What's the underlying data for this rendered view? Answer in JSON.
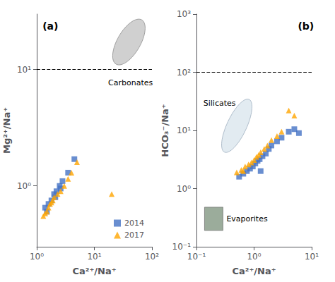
{
  "chart_data": [
    {
      "type": "scatter",
      "title": "(a)",
      "xlabel": "Ca²⁺/Na⁺",
      "ylabel": "Mg²⁺/Na⁺",
      "log": true,
      "grid": false,
      "legend": "lower right",
      "xlim": [
        1,
        100
      ],
      "xticks": [
        {
          "value": 1,
          "label": "10⁰"
        },
        {
          "value": 10,
          "label": "10¹"
        },
        {
          "value": 100,
          "label": "10²"
        }
      ],
      "ylim": [
        0.3,
        30
      ],
      "yticks": [
        {
          "value": 1,
          "label": "10⁰"
        },
        {
          "value": 10,
          "label": "10¹"
        }
      ],
      "hlines": [
        {
          "y": 10,
          "color": "#000000",
          "line_style": "dashed"
        }
      ],
      "annotations": [
        {
          "text": "Carbonates",
          "color": "#c8c8c8"
        }
      ],
      "series": [
        {
          "name": "2014",
          "color": "#4472C4",
          "marker": "square",
          "x": [
            1.4,
            1.6,
            1.8,
            2.0,
            2.2,
            2.5,
            2.8,
            3.5,
            4.5,
            1.5,
            2.1,
            2.6
          ],
          "values": [
            0.65,
            0.7,
            0.75,
            0.85,
            0.9,
            1.0,
            1.1,
            1.3,
            1.7,
            0.6,
            0.8,
            0.95
          ]
        },
        {
          "name": "2017",
          "color": "#FFA500",
          "marker": "triangle",
          "x": [
            1.3,
            1.5,
            1.6,
            1.7,
            1.9,
            2.0,
            2.3,
            2.6,
            3.0,
            3.5,
            4.0,
            5.0,
            20.0,
            1.4,
            1.8
          ],
          "values": [
            0.55,
            0.6,
            0.65,
            0.7,
            0.75,
            0.8,
            0.85,
            0.9,
            1.0,
            1.15,
            1.3,
            1.6,
            0.85,
            0.58,
            0.72
          ]
        }
      ]
    },
    {
      "type": "scatter",
      "title": "(b)",
      "xlabel": "Ca²⁺/Na⁺",
      "ylabel": "HCO₃⁻/Na⁺",
      "log": true,
      "grid": false,
      "xlim": [
        0.1,
        10
      ],
      "xticks": [
        {
          "value": 0.1,
          "label": "10⁻¹"
        },
        {
          "value": 1,
          "label": "10⁰"
        },
        {
          "value": 10,
          "label": "10¹"
        }
      ],
      "ylim": [
        0.1,
        1000
      ],
      "yticks": [
        {
          "value": 0.1,
          "label": "10⁻¹"
        },
        {
          "value": 1,
          "label": "10⁰"
        },
        {
          "value": 10,
          "label": "10¹"
        },
        {
          "value": 100,
          "label": "10²"
        },
        {
          "value": 1000,
          "label": "10³"
        }
      ],
      "hlines": [
        {
          "y": 100,
          "color": "#000000",
          "line_style": "dashed"
        }
      ],
      "annotations": [
        {
          "text": "Silicates",
          "color": "#dde8ee"
        },
        {
          "text": "Evaporites",
          "color": "#8a9e8a"
        }
      ],
      "series": [
        {
          "name": "2014",
          "color": "#4472C4",
          "marker": "square",
          "x": [
            0.55,
            0.65,
            0.75,
            0.85,
            0.95,
            1.05,
            1.15,
            1.25,
            1.4,
            1.6,
            1.8,
            2.0,
            2.5,
            3.0,
            4.0,
            5.0,
            6.0,
            1.3
          ],
          "values": [
            1.6,
            1.8,
            2.0,
            2.2,
            2.4,
            2.7,
            3.0,
            3.2,
            3.6,
            4.0,
            4.8,
            5.5,
            6.5,
            7.5,
            9.5,
            10.5,
            9.0,
            2.0
          ]
        },
        {
          "name": "2017",
          "color": "#FFA500",
          "marker": "triangle",
          "x": [
            0.5,
            0.6,
            0.7,
            0.8,
            0.9,
            1.0,
            1.1,
            1.3,
            1.5,
            1.7,
            2.0,
            2.5,
            3.0,
            4.0,
            5.0,
            0.65,
            1.2
          ],
          "values": [
            1.9,
            2.1,
            2.4,
            2.6,
            2.8,
            3.1,
            3.5,
            4.2,
            4.8,
            5.5,
            6.8,
            8.0,
            9.5,
            22.0,
            18.0,
            2.0,
            3.8
          ]
        }
      ]
    }
  ]
}
